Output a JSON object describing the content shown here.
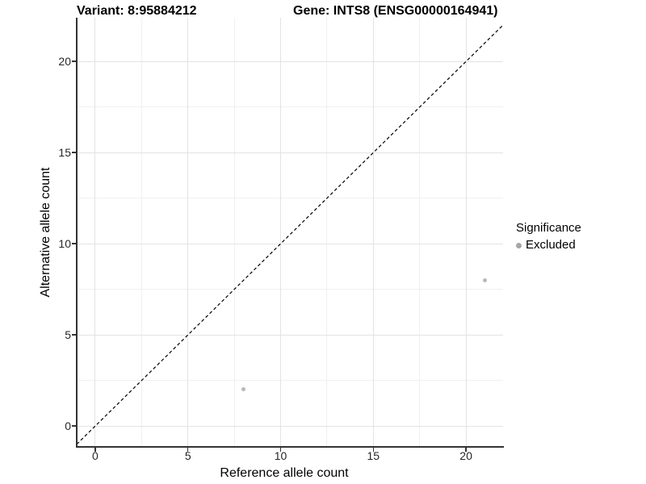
{
  "chart_data": {
    "type": "scatter",
    "title_left": "Variant: 8:95884212",
    "title_right": "Gene: INTS8 (ENSG00000164941)",
    "xlabel": "Reference allele count",
    "ylabel": "Alternative allele count",
    "xlim": [
      -1.0,
      22.0
    ],
    "ylim": [
      -1.1,
      22.4
    ],
    "x_major_ticks": [
      0,
      5,
      10,
      15,
      20
    ],
    "y_major_ticks": [
      0,
      5,
      10,
      15,
      20
    ],
    "x_minor_gridlines": [
      2.5,
      7.5,
      12.5,
      17.5
    ],
    "y_minor_gridlines": [
      2.5,
      7.5,
      12.5,
      17.5
    ],
    "grid": true,
    "points": [
      {
        "x": 8,
        "y": 2,
        "series": "Excluded"
      },
      {
        "x": 21,
        "y": 8,
        "series": "Excluded"
      }
    ],
    "reference_line": {
      "type": "identity",
      "equation": "y = x",
      "style": "dashed",
      "color": "#000000"
    },
    "legend": {
      "position": "right",
      "title": "Significance",
      "items": [
        {
          "label": "Excluded",
          "color": "#a6a6a6"
        }
      ]
    },
    "colors": {
      "point": "#b9b9b9",
      "axis_line": "#333333",
      "grid_major": "#e3e3e3",
      "grid_minor": "#f0f0f0",
      "tick_label": "#262626"
    }
  }
}
